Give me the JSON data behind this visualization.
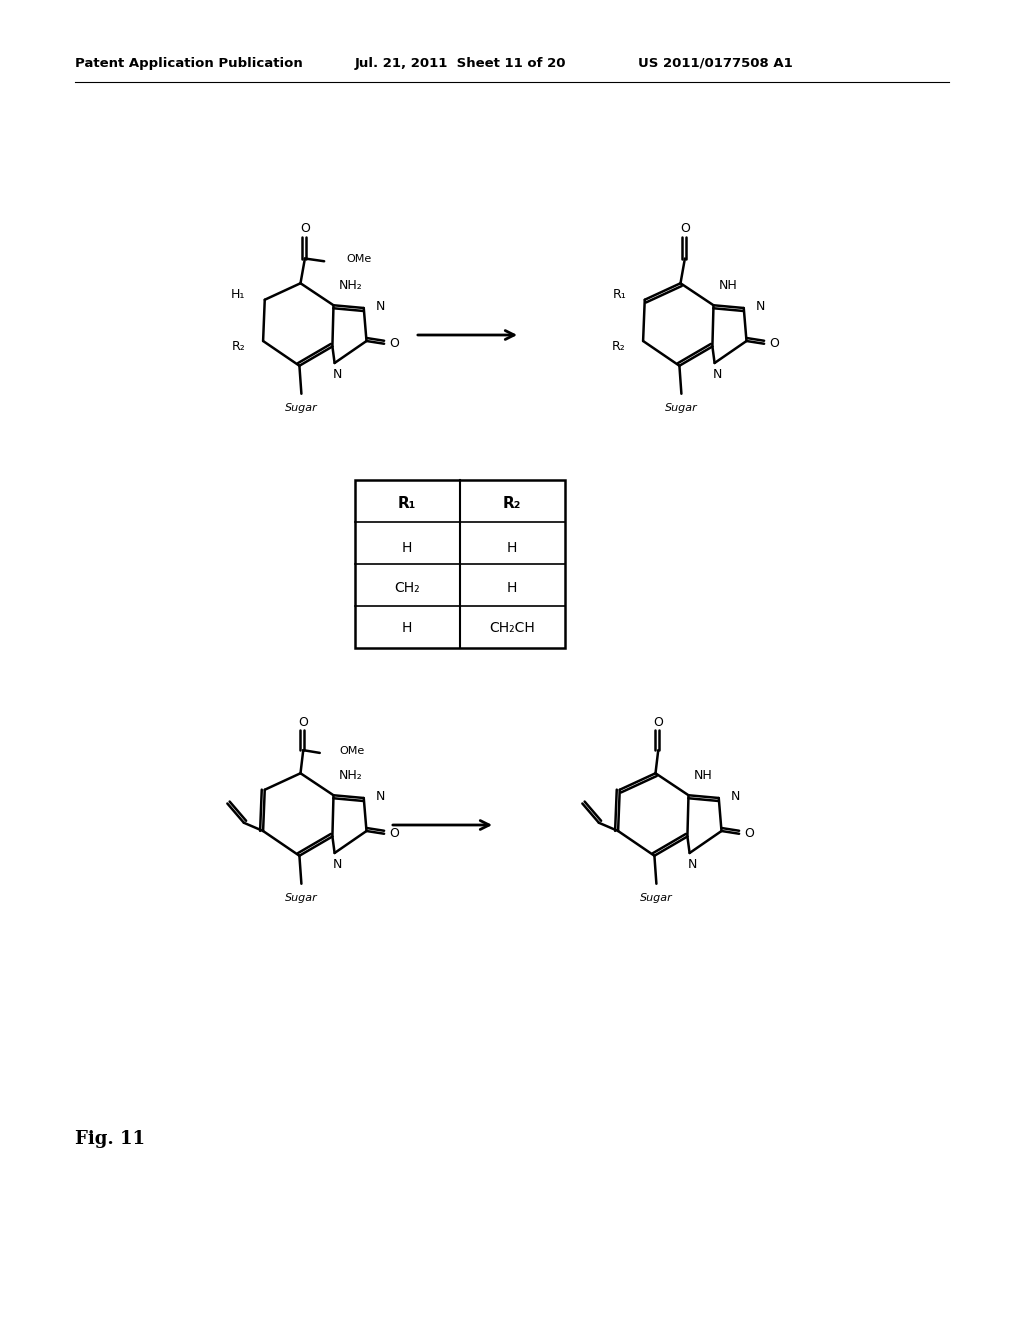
{
  "bg_color": "#ffffff",
  "header_left": "Patent Application Publication",
  "header_mid": "Jul. 21, 2011  Sheet 11 of 20",
  "header_right": "US 2011/0177508 A1",
  "fig_label": "Fig. 11",
  "table_rows": [
    [
      "H",
      "H"
    ],
    [
      "CH₂",
      "H"
    ],
    [
      "H",
      "CH₂CH"
    ]
  ]
}
